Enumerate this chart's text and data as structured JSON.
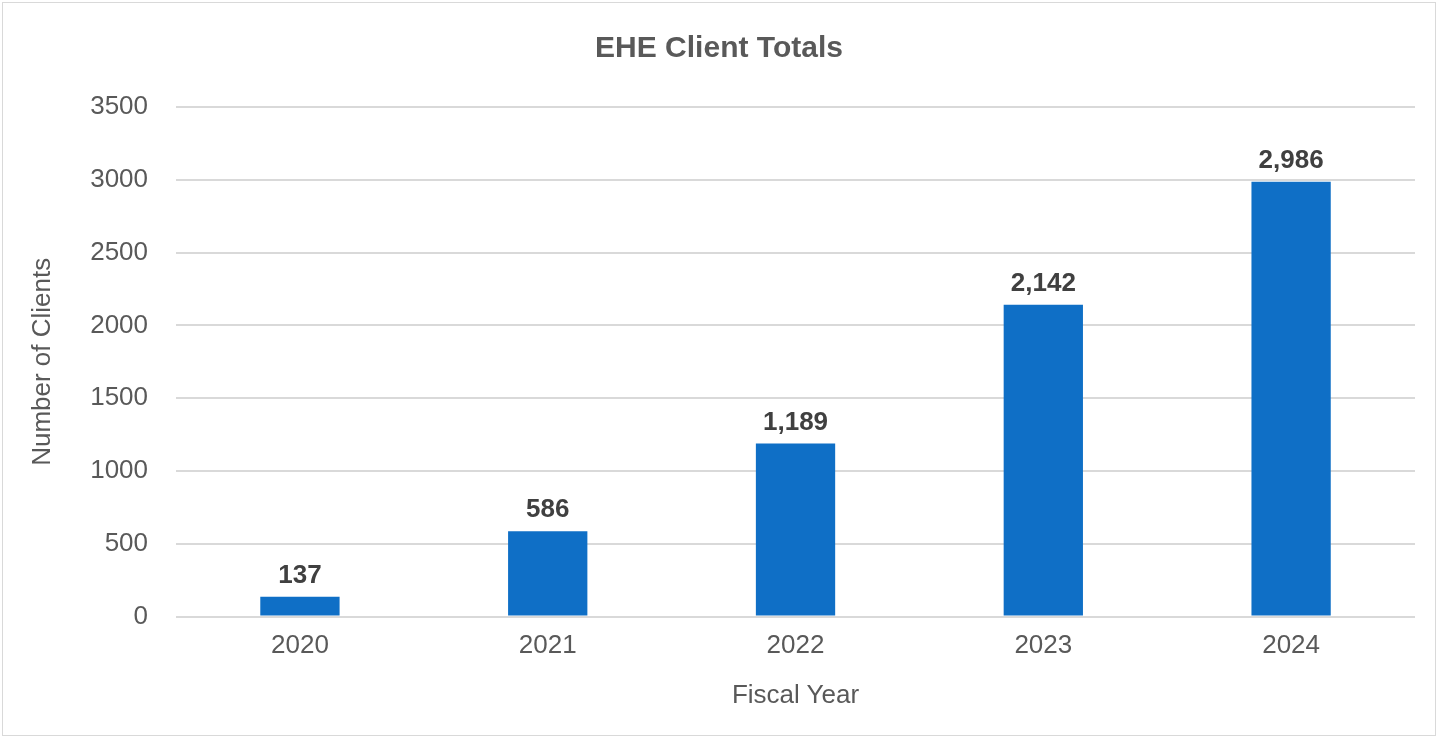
{
  "chart_data": {
    "type": "bar",
    "title": "EHE Client Totals",
    "xlabel": "Fiscal Year",
    "ylabel": "Number of Clients",
    "categories": [
      "2020",
      "2021",
      "2022",
      "2023",
      "2024"
    ],
    "values": [
      137,
      586,
      1189,
      2142,
      2986
    ],
    "value_labels": [
      "137",
      "586",
      "1,189",
      "2,142",
      "2,986"
    ],
    "color": "#0f6fc6",
    "ylim": [
      0,
      3500
    ],
    "yticks": [
      0,
      500,
      1000,
      1500,
      2000,
      2500,
      3000,
      3500
    ],
    "grid": "y",
    "legend": false
  }
}
